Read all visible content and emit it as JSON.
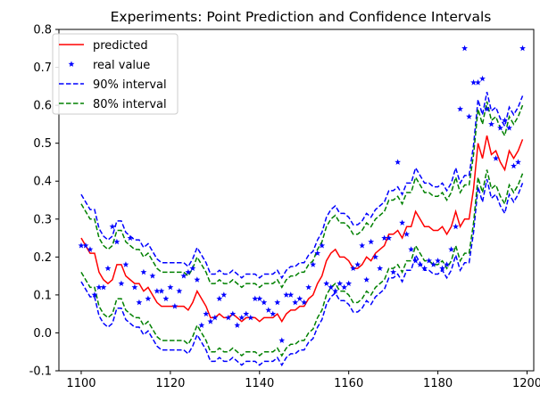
{
  "chart_data": {
    "type": "line",
    "title": "Experiments: Point Prediction and Confidence Intervals",
    "xlabel": "",
    "ylabel": "",
    "xlim": [
      1095,
      1201.5
    ],
    "ylim": [
      -0.1,
      0.8
    ],
    "xticks": [
      1100,
      1120,
      1140,
      1160,
      1180,
      1200
    ],
    "yticks": [
      -0.1,
      0.0,
      0.1,
      0.2,
      0.3,
      0.4,
      0.5,
      0.6,
      0.7,
      0.8
    ],
    "grid": false,
    "legend": {
      "placement": "top-left"
    },
    "x_start": 1100,
    "x_end": 1199,
    "predicted": [
      0.25,
      0.23,
      0.21,
      0.21,
      0.16,
      0.14,
      0.13,
      0.14,
      0.18,
      0.18,
      0.15,
      0.14,
      0.13,
      0.13,
      0.11,
      0.12,
      0.1,
      0.08,
      0.07,
      0.07,
      0.07,
      0.07,
      0.07,
      0.07,
      0.06,
      0.08,
      0.11,
      0.09,
      0.07,
      0.04,
      0.04,
      0.05,
      0.04,
      0.04,
      0.05,
      0.04,
      0.03,
      0.04,
      0.04,
      0.04,
      0.03,
      0.04,
      0.04,
      0.04,
      0.05,
      0.03,
      0.05,
      0.06,
      0.06,
      0.07,
      0.07,
      0.09,
      0.1,
      0.13,
      0.15,
      0.19,
      0.21,
      0.22,
      0.2,
      0.2,
      0.19,
      0.17,
      0.17,
      0.18,
      0.2,
      0.19,
      0.21,
      0.22,
      0.23,
      0.26,
      0.26,
      0.27,
      0.25,
      0.28,
      0.28,
      0.32,
      0.3,
      0.28,
      0.28,
      0.27,
      0.27,
      0.28,
      0.26,
      0.28,
      0.32,
      0.28,
      0.3,
      0.3,
      0.38,
      0.5,
      0.46,
      0.52,
      0.47,
      0.48,
      0.45,
      0.43,
      0.48,
      0.46,
      0.48,
      0.51
    ],
    "real_value": [
      0.23,
      0.23,
      0.22,
      0.1,
      0.12,
      0.12,
      0.17,
      0.28,
      0.24,
      0.13,
      0.18,
      0.25,
      0.12,
      0.08,
      0.16,
      0.09,
      0.15,
      0.11,
      0.11,
      0.09,
      0.12,
      0.07,
      0.11,
      0.15,
      0.16,
      0.17,
      0.14,
      0.02,
      0.05,
      0.03,
      0.04,
      0.09,
      0.1,
      0.04,
      0.05,
      0.02,
      0.04,
      0.05,
      0.04,
      0.09,
      0.09,
      0.08,
      0.06,
      0.05,
      0.08,
      -0.02,
      0.1,
      0.1,
      0.08,
      0.09,
      0.08,
      0.12,
      0.18,
      0.21,
      0.23,
      0.13,
      0.12,
      0.11,
      0.13,
      0.12,
      0.13,
      0.17,
      0.18,
      0.23,
      0.14,
      0.24,
      0.2,
      0.17,
      0.25,
      0.25,
      0.16,
      0.45,
      0.29,
      0.26,
      0.22,
      0.19,
      0.18,
      0.17,
      0.19,
      0.18,
      0.19,
      0.17,
      0.18,
      0.22,
      0.28,
      0.59,
      0.75,
      0.57,
      0.66,
      0.66,
      0.67,
      0.59,
      0.55,
      0.46,
      0.54,
      0.56,
      0.54,
      0.44,
      0.45,
      0.75
    ],
    "interval_90": {
      "lower_offset": -0.115,
      "upper_offset": 0.115
    },
    "interval_80": {
      "lower_offset": -0.09,
      "upper_offset": 0.09
    },
    "series": [
      {
        "name": "predicted",
        "color": "#ff0000",
        "style": "solid-line"
      },
      {
        "name": "real value",
        "color": "#0000ff",
        "style": "star-marker"
      },
      {
        "name": "90% interval",
        "color": "#0000ff",
        "style": "dashed-line"
      },
      {
        "name": "80% interval",
        "color": "#008000",
        "style": "dashed-line"
      }
    ]
  }
}
